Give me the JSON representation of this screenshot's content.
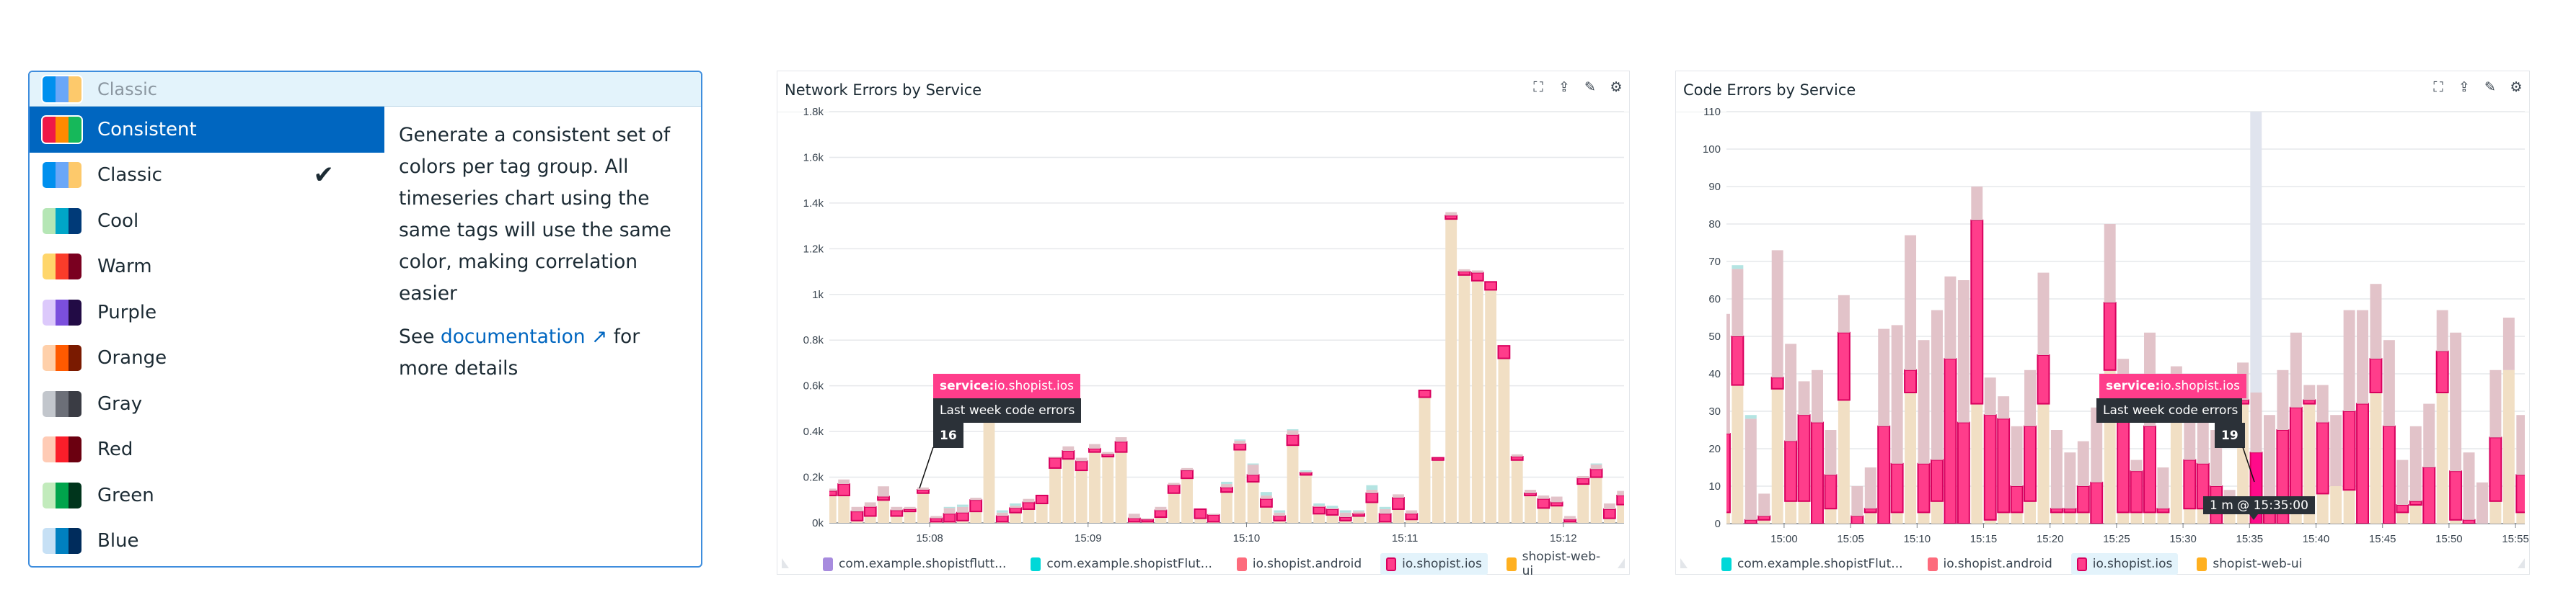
{
  "palette": {
    "current": {
      "label": "Classic",
      "colors": [
        "#0090ee",
        "#6aa7f8",
        "#fdc96b"
      ]
    },
    "items": [
      {
        "label": "Consistent",
        "colors": [
          "#ef1847",
          "#ff8a00",
          "#16b85a"
        ],
        "selected": true
      },
      {
        "label": "Classic",
        "colors": [
          "#0090ee",
          "#6aa7f8",
          "#fdc96b"
        ],
        "checked": true
      },
      {
        "label": "Cool",
        "colors": [
          "#b5e6b5",
          "#00a6c8",
          "#003a78"
        ]
      },
      {
        "label": "Warm",
        "colors": [
          "#ffd66b",
          "#fa3c2a",
          "#7a0020"
        ]
      },
      {
        "label": "Purple",
        "colors": [
          "#dcc9fb",
          "#7b4fdd",
          "#220b45"
        ]
      },
      {
        "label": "Orange",
        "colors": [
          "#ffd0aa",
          "#ff5a00",
          "#7a1a00"
        ]
      },
      {
        "label": "Gray",
        "colors": [
          "#c2c6cc",
          "#6c6f78",
          "#3a3c44"
        ]
      },
      {
        "label": "Red",
        "colors": [
          "#ffcbb5",
          "#fb1e2a",
          "#6b0010"
        ]
      },
      {
        "label": "Green",
        "colors": [
          "#c2ebbc",
          "#00a44c",
          "#00351c"
        ]
      },
      {
        "label": "Blue",
        "colors": [
          "#c6e0f5",
          "#0080c0",
          "#002c5c"
        ]
      }
    ],
    "check_icon": "checkmark-icon",
    "description": "Generate a consistent set of colors per tag group. All timeseries chart using the same tags will use the same color, making correlation easier",
    "see": "See",
    "doc_link": "documentation",
    "link_icon": "external-link-icon",
    "more": "for more details"
  },
  "colors": {
    "web": "#f1dfc4",
    "ios": "#ff3d8b",
    "ios_border": "#d8005e",
    "android": "#e2c3c9",
    "teal": "#b4e4e2",
    "accent": "#0066c0"
  },
  "chart_data": [
    {
      "type": "bar",
      "title": "Network Errors by Service",
      "header_icons": [
        "expand-icon",
        "export-icon",
        "edit-icon",
        "gear-icon"
      ],
      "stacked": true,
      "x_step_seconds": 5,
      "x_first": "15:07:20",
      "xlim": [
        "15:07:22",
        "15:12:23"
      ],
      "x_ticks": [
        "15:08",
        "15:09",
        "15:10",
        "15:11",
        "15:12"
      ],
      "ylim": [
        0,
        1800
      ],
      "y_ticks": [
        0,
        200,
        400,
        600,
        800,
        1000,
        1200,
        1400,
        1600,
        1800
      ],
      "y_tick_labels": [
        "0k",
        "0.2k",
        "0.4k",
        "0.6k",
        "0.8k",
        "1k",
        "1.2k",
        "1.4k",
        "1.6k",
        "1.8k"
      ],
      "grid": true,
      "series": [
        {
          "name": "shopist-web-ui",
          "color": "#ffb020",
          "values": [
            120,
            120,
            10,
            30,
            100,
            30,
            50,
            130,
            5,
            5,
            10,
            50,
            450,
            5,
            45,
            60,
            85,
            240,
            280,
            230,
            310,
            290,
            310,
            5,
            5,
            25,
            130,
            195,
            20,
            5,
            135,
            320,
            180,
            70,
            10,
            340,
            210,
            40,
            35,
            10,
            30,
            90,
            5,
            60,
            15,
            550,
            275,
            1330,
            1085,
            1060,
            1020,
            720,
            275,
            120,
            65,
            75,
            5,
            170,
            200,
            20,
            80
          ]
        },
        {
          "name": "io.shopist.ios",
          "color": "#ff3d8b",
          "values": [
            20,
            50,
            40,
            40,
            15,
            25,
            10,
            15,
            15,
            35,
            35,
            50,
            0,
            25,
            20,
            30,
            35,
            45,
            35,
            40,
            15,
            10,
            45,
            15,
            10,
            30,
            35,
            35,
            40,
            30,
            20,
            25,
            30,
            35,
            20,
            45,
            10,
            30,
            25,
            15,
            10,
            40,
            35,
            50,
            25,
            30,
            10,
            15,
            15,
            35,
            35,
            55,
            15,
            10,
            40,
            15,
            10,
            25,
            35,
            40,
            40
          ]
        },
        {
          "name": "io.shopist.android",
          "color": "#fd6b7c",
          "values": [
            10,
            20,
            20,
            20,
            45,
            15,
            10,
            10,
            10,
            25,
            25,
            10,
            0,
            15,
            10,
            15,
            0,
            5,
            20,
            15,
            20,
            10,
            20,
            20,
            5,
            15,
            10,
            10,
            0,
            5,
            15,
            15,
            45,
            15,
            15,
            20,
            5,
            5,
            5,
            20,
            10,
            15,
            20,
            15,
            15,
            0,
            0,
            15,
            10,
            10,
            0,
            0,
            10,
            15,
            15,
            25,
            15,
            10,
            20,
            25,
            20
          ]
        },
        {
          "name": "com.example.shopistFlut...",
          "color": "#00d8d8",
          "values": [
            0,
            0,
            0,
            0,
            0,
            0,
            0,
            0,
            0,
            5,
            10,
            0,
            0,
            10,
            10,
            0,
            0,
            0,
            0,
            0,
            0,
            0,
            0,
            0,
            0,
            0,
            0,
            0,
            0,
            0,
            10,
            5,
            5,
            15,
            10,
            5,
            5,
            10,
            10,
            10,
            5,
            20,
            10,
            0,
            0,
            0,
            0,
            0,
            0,
            0,
            0,
            0,
            0,
            0,
            0,
            0,
            0,
            0,
            5,
            0,
            0
          ]
        }
      ],
      "legend": [
        {
          "name": "com.example.shopistflutt...",
          "color": "#a78bde"
        },
        {
          "name": "com.example.shopistFlut...",
          "color": "#00d8d8"
        },
        {
          "name": "io.shopist.android",
          "color": "#fd6b7c"
        },
        {
          "name": "io.shopist.ios",
          "color": "#ff3d8b",
          "highlighted": true
        },
        {
          "name": "shopist-web-ui",
          "color": "#ffb020"
        }
      ],
      "tooltip": {
        "tag": "service:",
        "value": "io.shopist.ios",
        "metric": "Last week code errors",
        "number": "16"
      }
    },
    {
      "type": "bar",
      "title": "Code Errors by Service",
      "header_icons": [
        "expand-icon",
        "export-icon",
        "edit-icon",
        "gear-icon"
      ],
      "stacked": true,
      "x_step_seconds": 60,
      "x_first": "14:55:00",
      "xlim": [
        "14:55:40",
        "15:55:42"
      ],
      "x_ticks": [
        "15:00",
        "15:05",
        "15:10",
        "15:15",
        "15:20",
        "15:25",
        "15:30",
        "15:35",
        "15:40",
        "15:45",
        "15:50",
        "15:55"
      ],
      "ylim": [
        0,
        110
      ],
      "y_ticks": [
        0,
        10,
        20,
        30,
        40,
        50,
        60,
        70,
        80,
        90,
        100,
        110
      ],
      "grid": true,
      "hover_index": 40,
      "series": [
        {
          "name": "shopist-web-ui",
          "color": "#ffb020",
          "values": [
            3,
            37,
            0,
            1,
            36,
            6,
            6,
            0,
            4,
            33,
            0,
            3,
            0,
            3,
            35,
            3,
            6,
            0,
            0,
            32,
            1,
            3,
            3,
            6,
            32,
            3,
            3,
            3,
            0,
            41,
            3,
            3,
            3,
            3,
            28,
            4,
            4,
            0,
            3,
            32,
            0,
            0,
            0,
            3,
            32,
            8,
            10,
            9,
            0,
            35,
            0,
            3,
            5,
            0,
            35,
            1,
            0,
            0,
            6,
            41,
            3
          ]
        },
        {
          "name": "io.shopist.ios",
          "color": "#ff3d8b",
          "values": [
            21,
            13,
            1,
            1,
            3,
            16,
            23,
            27,
            9,
            18,
            2,
            1,
            26,
            13,
            6,
            13,
            11,
            44,
            27,
            49,
            28,
            25,
            7,
            20,
            13,
            1,
            1,
            7,
            11,
            18,
            27,
            11,
            23,
            1,
            0,
            13,
            12,
            10,
            1,
            1,
            19,
            3,
            25,
            28,
            1,
            19,
            0,
            21,
            32,
            9,
            26,
            2,
            1,
            15,
            11,
            13,
            1,
            0,
            17,
            0,
            10
          ]
        },
        {
          "name": "io.shopist.android",
          "color": "#fd6b7c",
          "values": [
            32,
            18,
            27,
            6,
            34,
            26,
            9,
            14,
            12,
            10,
            8,
            11,
            26,
            37,
            36,
            33,
            40,
            22,
            38,
            9,
            10,
            6,
            16,
            15,
            22,
            21,
            15,
            12,
            20,
            21,
            14,
            3,
            25,
            11,
            14,
            18,
            14,
            15,
            5,
            10,
            16,
            26,
            16,
            20,
            4,
            10,
            19,
            27,
            25,
            20,
            23,
            12,
            20,
            17,
            11,
            37,
            18,
            11,
            18,
            14,
            16
          ]
        },
        {
          "name": "com.example.shopistFlut...",
          "color": "#00d8d8",
          "values": [
            0,
            1,
            1,
            0,
            0,
            0,
            0,
            0,
            0,
            0,
            0,
            0,
            0,
            0,
            0,
            0,
            0,
            0,
            0,
            0,
            0,
            0,
            0,
            0,
            0,
            0,
            0,
            0,
            0,
            0,
            0,
            0,
            0,
            0,
            0,
            0,
            0,
            0,
            0,
            0,
            0,
            0,
            0,
            0,
            0,
            0,
            0,
            0,
            0,
            0,
            0,
            0,
            0,
            0,
            0,
            0,
            0,
            0,
            0,
            0,
            0
          ]
        }
      ],
      "legend": [
        {
          "name": "com.example.shopistFlut...",
          "color": "#00d8d8"
        },
        {
          "name": "io.shopist.android",
          "color": "#fd6b7c"
        },
        {
          "name": "io.shopist.ios",
          "color": "#ff3d8b",
          "highlighted": true
        },
        {
          "name": "shopist-web-ui",
          "color": "#ffb020"
        }
      ],
      "tooltip": {
        "tag": "service:",
        "value": "io.shopist.ios",
        "metric": "Last week code errors",
        "number": "19"
      },
      "time_tooltip": "1 m @ 15:35:00"
    }
  ]
}
